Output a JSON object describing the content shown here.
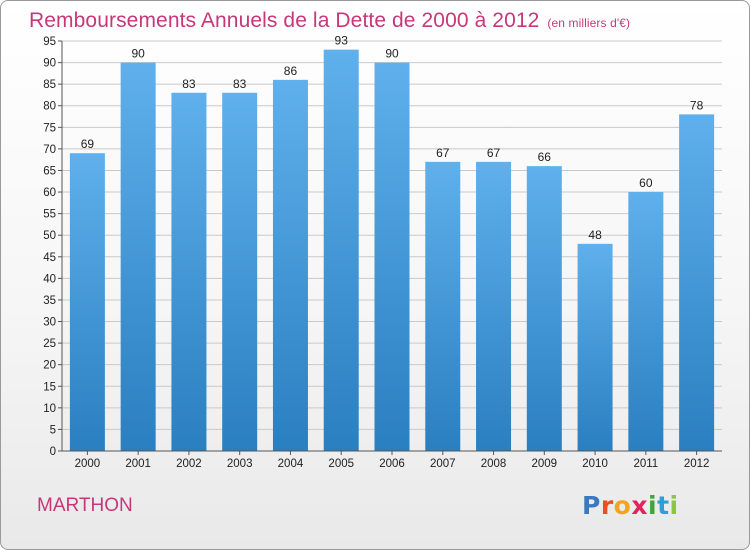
{
  "header": {
    "title": "Remboursements Annuels de la Dette de 2000 à 2012",
    "unit": "(en milliers d'€)"
  },
  "footer": {
    "commune": "MARTHON",
    "logo_letters": [
      {
        "char": "P",
        "color": "#3a78c2"
      },
      {
        "char": "r",
        "color": "#e8501e"
      },
      {
        "char": "o",
        "color": "#f2a51c"
      },
      {
        "char": "x",
        "color": "#e0245e"
      },
      {
        "char": "i",
        "color": "#3fa535"
      },
      {
        "char": "t",
        "color": "#2c9fd8"
      },
      {
        "char": "i",
        "color": "#8cc63f"
      }
    ]
  },
  "colors": {
    "title": "#c8377a",
    "bar_top": "#5fb0ec",
    "bar_bottom": "#2a7fc0",
    "grid": "#c9c9c9",
    "axis": "#555555"
  },
  "chart_data": {
    "type": "bar",
    "title": "Remboursements Annuels de la Dette de 2000 à 2012",
    "xlabel": "",
    "ylabel": "",
    "categories": [
      "2000",
      "2001",
      "2002",
      "2003",
      "2004",
      "2005",
      "2006",
      "2007",
      "2008",
      "2009",
      "2010",
      "2011",
      "2012"
    ],
    "values": [
      69,
      90,
      83,
      83,
      86,
      93,
      90,
      67,
      67,
      66,
      48,
      60,
      78
    ],
    "ylim": [
      0,
      95
    ],
    "yticks": [
      0,
      5,
      10,
      15,
      20,
      25,
      30,
      35,
      40,
      45,
      50,
      55,
      60,
      65,
      70,
      75,
      80,
      85,
      90,
      95
    ],
    "grid": true,
    "legend": "none"
  }
}
